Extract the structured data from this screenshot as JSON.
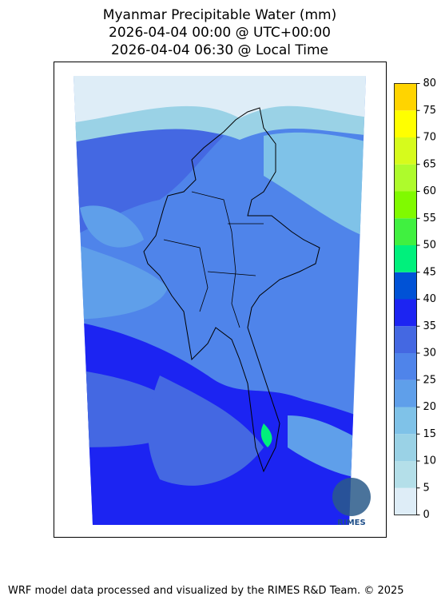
{
  "title": [
    "Myanmar Precipitable Water (mm)",
    "2026-04-04 00:00 @ UTC+00:00",
    "2026-04-04 06:30 @ Local Time"
  ],
  "colorbar": {
    "lim": [
      0,
      80
    ],
    "ticks": [
      0,
      5,
      10,
      15,
      20,
      25,
      30,
      35,
      40,
      45,
      50,
      55,
      60,
      65,
      70,
      75,
      80
    ],
    "colors": [
      "#deedf7",
      "#b4dfe9",
      "#9ad2e6",
      "#7fc2e8",
      "#5f9fea",
      "#4f84ea",
      "#4468e2",
      "#1c24f2",
      "#0052d6",
      "#00f07c",
      "#40f040",
      "#80fa00",
      "#aefb2c",
      "#d6fb1c",
      "#ffff00",
      "#ffd400"
    ]
  },
  "logo": "RIMES",
  "footer": "WRF model data processed and visualized by the RIMES R&D Team. © 2025"
}
